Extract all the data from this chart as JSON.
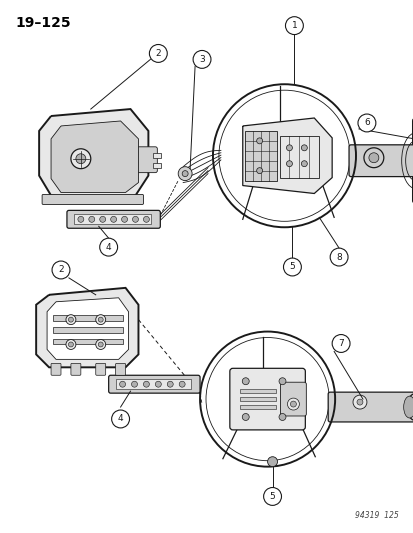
{
  "title": "19–125",
  "footer": "94319  125",
  "background_color": "#ffffff",
  "text_color": "#000000",
  "line_color": "#1a1a1a",
  "fill_light": "#e8e8e8",
  "fill_mid": "#d0d0d0",
  "fill_dark": "#b0b0b0",
  "figsize": [
    4.14,
    5.33
  ],
  "dpi": 100
}
